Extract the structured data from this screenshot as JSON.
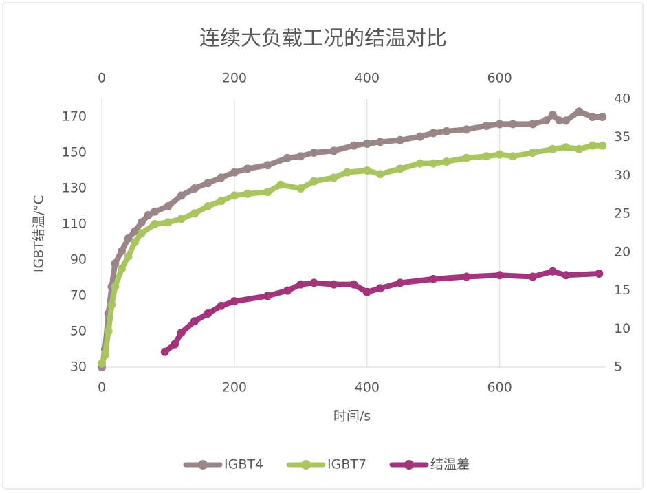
{
  "chart_data": {
    "type": "line",
    "title": "连续大负载工况的结温对比",
    "x_label": "时间/s",
    "y_label": "IGBT结温/°C",
    "xlim": [
      0,
      760
    ],
    "xticks": [
      0,
      200,
      400,
      600
    ],
    "ylim": [
      30,
      180
    ],
    "yticks": [
      30,
      50,
      70,
      90,
      110,
      130,
      150,
      170
    ],
    "y2lim": [
      5,
      40
    ],
    "y2ticks": [
      5,
      10,
      15,
      20,
      25,
      30,
      35,
      40
    ],
    "grid": "x",
    "legend": "bottom",
    "series": [
      {
        "name": "IGBT4",
        "color": "#9a8689",
        "x": [
          0,
          5,
          10,
          15,
          20,
          30,
          40,
          50,
          60,
          70,
          80,
          100,
          120,
          140,
          160,
          180,
          200,
          220,
          250,
          280,
          300,
          320,
          350,
          380,
          400,
          420,
          450,
          480,
          500,
          520,
          550,
          580,
          600,
          620,
          650,
          670,
          680,
          690,
          700,
          720,
          740,
          755
        ],
        "values": [
          30,
          40,
          60,
          75,
          88,
          95,
          102,
          106,
          111,
          115,
          117,
          120,
          126,
          130,
          133,
          136,
          139,
          141,
          143,
          147,
          148,
          150,
          151,
          154,
          155,
          156,
          157,
          159,
          161,
          162,
          163,
          165,
          166,
          166,
          166,
          168,
          171,
          168,
          168,
          173,
          170,
          170
        ]
      },
      {
        "name": "IGBT7",
        "color": "#a9c560",
        "x": [
          0,
          5,
          10,
          15,
          20,
          30,
          40,
          50,
          60,
          80,
          100,
          120,
          140,
          160,
          180,
          200,
          220,
          250,
          270,
          300,
          320,
          350,
          370,
          400,
          420,
          450,
          480,
          500,
          520,
          550,
          580,
          600,
          620,
          650,
          680,
          700,
          720,
          740,
          755
        ],
        "values": [
          32,
          37,
          50,
          65,
          75,
          85,
          92,
          100,
          105,
          110,
          111,
          113,
          116,
          120,
          123,
          126,
          127,
          128,
          132,
          130,
          134,
          136,
          139,
          140,
          138,
          141,
          144,
          144,
          145,
          147,
          148,
          149,
          148,
          150,
          152,
          153,
          152,
          154,
          154
        ]
      },
      {
        "name": "结温差",
        "color": "#a3347c",
        "axis": "y2",
        "x": [
          95,
          110,
          120,
          140,
          160,
          180,
          200,
          250,
          280,
          300,
          320,
          350,
          380,
          400,
          420,
          450,
          500,
          550,
          600,
          650,
          680,
          700,
          750
        ],
        "values": [
          7,
          8,
          9.5,
          11,
          12,
          13,
          13.6,
          14.3,
          15,
          15.8,
          16,
          15.8,
          15.8,
          14.8,
          15.3,
          16,
          16.5,
          16.8,
          17,
          16.8,
          17.5,
          17,
          17.2
        ]
      }
    ]
  }
}
